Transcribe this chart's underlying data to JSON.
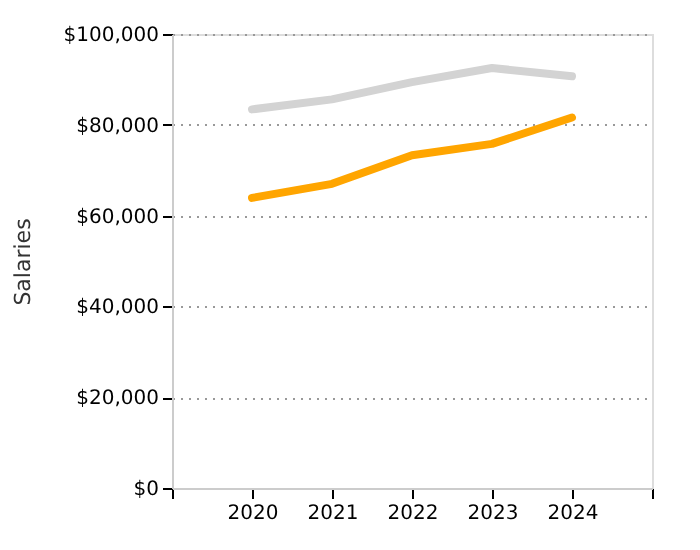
{
  "chart_data": {
    "type": "line",
    "ylabel": "Salaries",
    "x": [
      2020,
      2021,
      2022,
      2023,
      2024
    ],
    "series": [
      {
        "color": "#d3d3d3",
        "values": [
          83400,
          85600,
          89400,
          92500,
          90700
        ]
      },
      {
        "color": "#ffa500",
        "values": [
          63900,
          67000,
          73300,
          75800,
          81600
        ]
      }
    ],
    "xlim": [
      2019,
      2025
    ],
    "xticks": [
      {
        "value": 2019,
        "label": null
      },
      2020,
      2021,
      2022,
      2023,
      2024,
      {
        "value": 2025,
        "label": null
      }
    ],
    "ylim": [
      0,
      100000
    ],
    "yticks": [
      {
        "value": 0,
        "label": "$0"
      },
      {
        "value": 20000,
        "label": "$20,000"
      },
      {
        "value": 40000,
        "label": "$40,000"
      },
      {
        "value": 60000,
        "label": "$60,000"
      },
      {
        "value": 80000,
        "label": "$80,000"
      },
      {
        "value": 100000,
        "label": "$100,000"
      }
    ],
    "grid": "y",
    "legend": false,
    "marker": "none",
    "line_style": "solid"
  }
}
